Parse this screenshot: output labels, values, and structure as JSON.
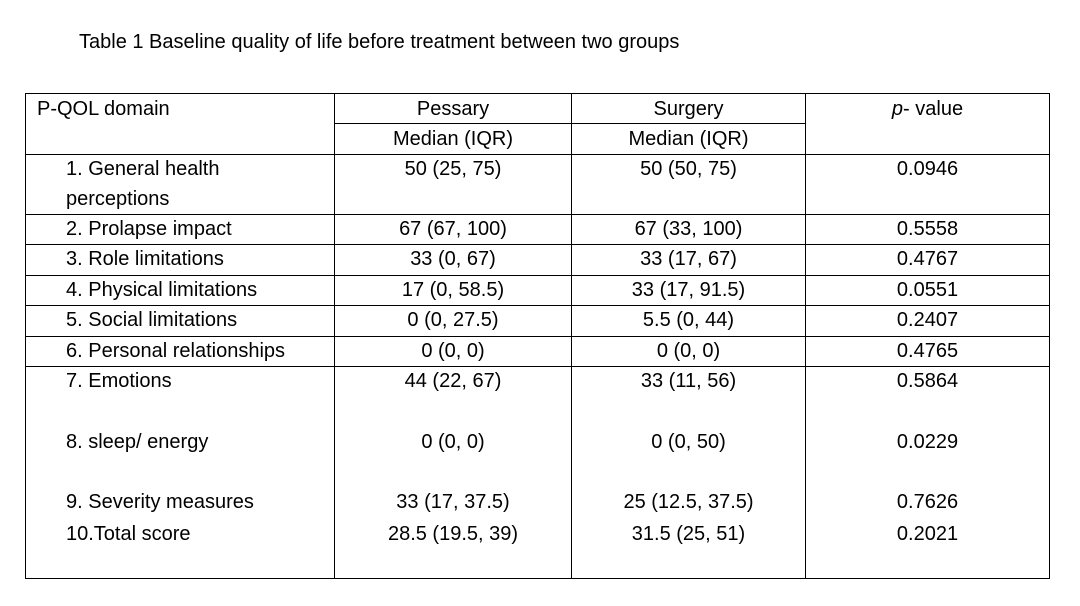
{
  "title": "Table 1 Baseline quality of life before treatment between two groups",
  "header": {
    "col1": "P-QOL domain",
    "col2": "Pessary",
    "col3": "Surgery",
    "col4_italic": "p",
    "col4_rest": "- value",
    "sub2": "Median (IQR)",
    "sub3": "Median (IQR)"
  },
  "rows": [
    {
      "domain": "1. General health perceptions",
      "pessary": "50 (25, 75)",
      "surgery": "50 (50, 75)",
      "p": "0.0946"
    },
    {
      "domain": "2. Prolapse impact",
      "pessary": "67 (67, 100)",
      "surgery": "67 (33, 100)",
      "p": "0.5558"
    },
    {
      "domain": "3. Role limitations",
      "pessary": "33 (0, 67)",
      "surgery": "33 (17, 67)",
      "p": "0.4767"
    },
    {
      "domain": "4. Physical limitations",
      "pessary": "17 (0, 58.5)",
      "surgery": "33 (17, 91.5)",
      "p": "0.0551"
    },
    {
      "domain": "5. Social limitations",
      "pessary": "0 (0, 27.5)",
      "surgery": "5.5 (0, 44)",
      "p": "0.2407"
    },
    {
      "domain": "6. Personal relationships",
      "pessary": "0 (0, 0)",
      "surgery": "0 (0, 0)",
      "p": "0.4765"
    },
    {
      "domain": "7. Emotions",
      "pessary": "44 (22, 67)",
      "surgery": "33 (11, 56)",
      "p": "0.5864"
    },
    {
      "domain": "8. sleep/ energy",
      "pessary": "0 (0, 0)",
      "surgery": "0 (0, 50)",
      "p": "0.0229"
    },
    {
      "domain": "9. Severity measures",
      "pessary": "33 (17, 37.5)",
      "surgery": "25 (12.5, 37.5)",
      "p": "0.7626"
    },
    {
      "domain": "10.Total score",
      "pessary": "28.5 (19.5, 39)",
      "surgery": "31.5 (25, 51)",
      "p": "0.2021"
    }
  ]
}
